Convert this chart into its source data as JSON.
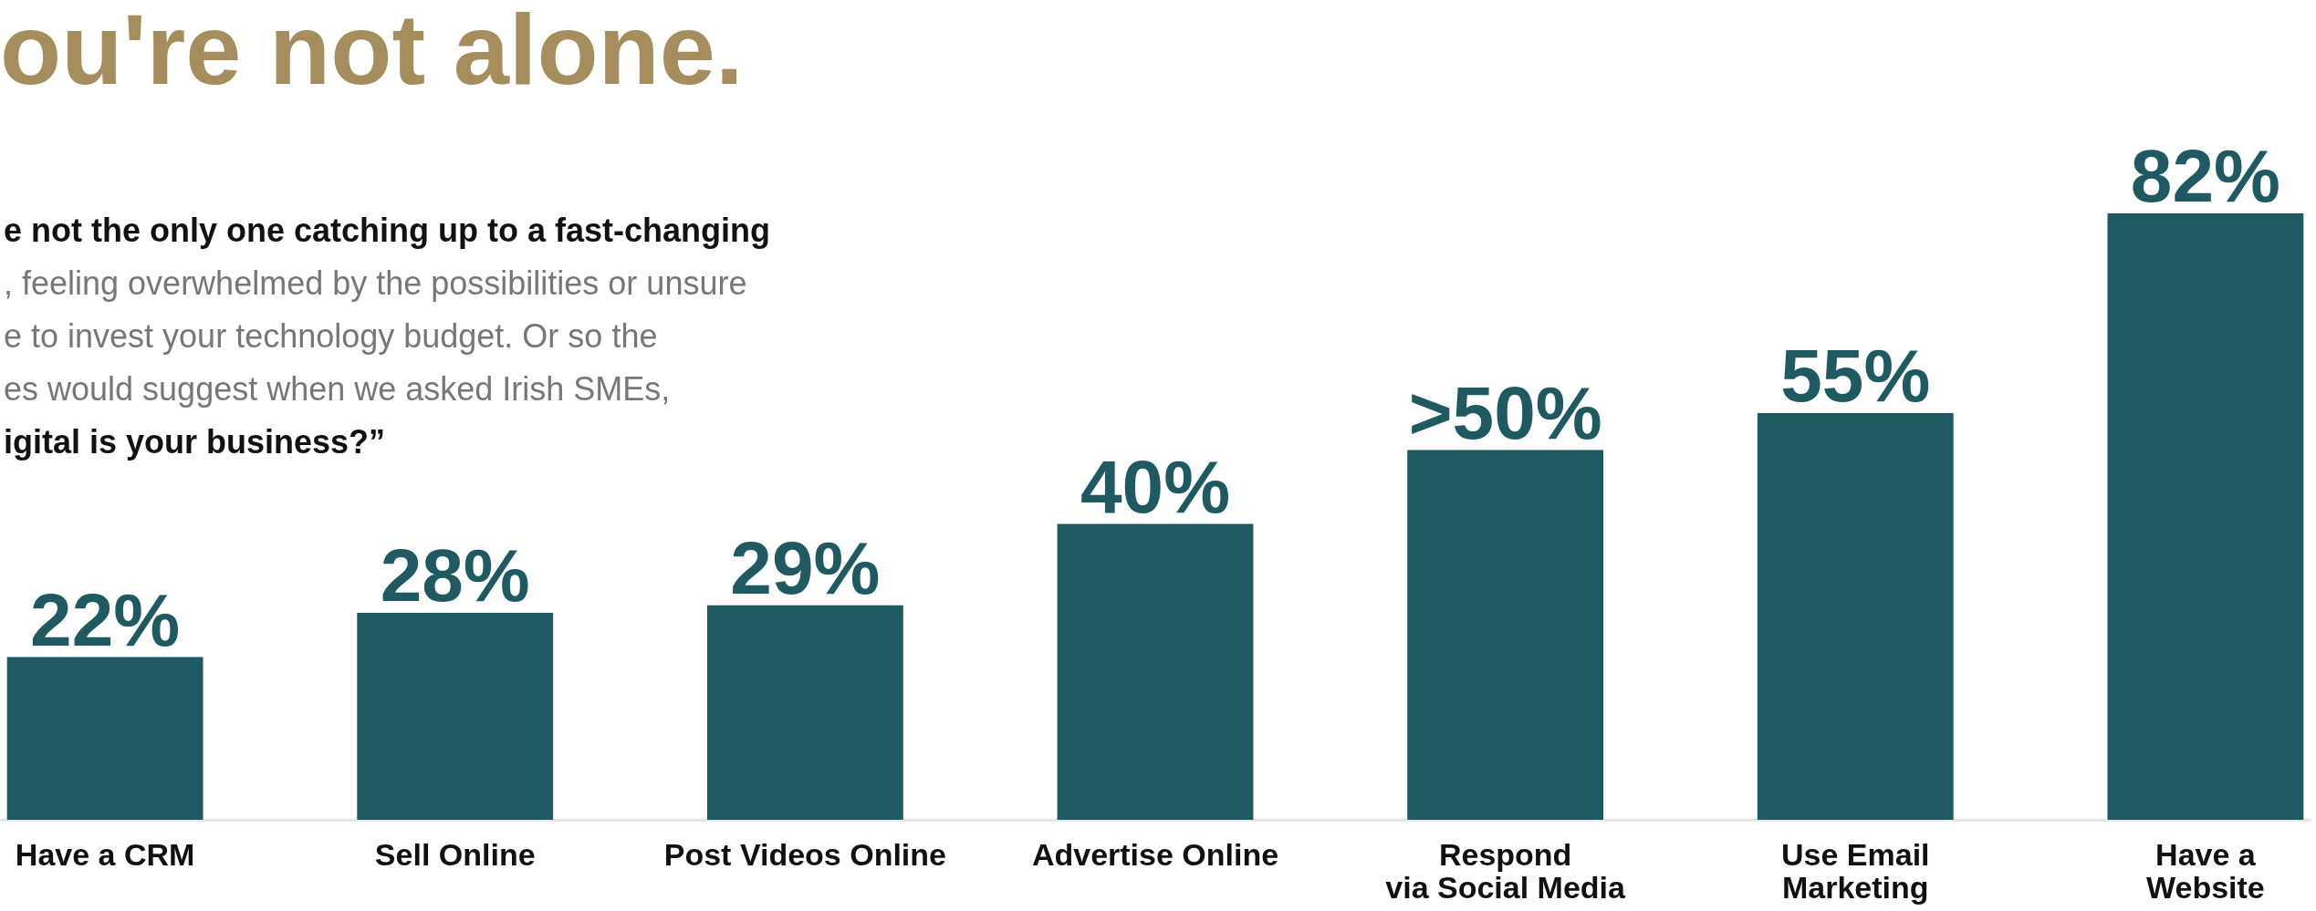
{
  "chart_data": {
    "type": "bar",
    "title": "ou're not alone.",
    "annotations": [
      "e not the only one catching up to a fast-changing",
      ", feeling overwhelmed by the possibilities or unsure",
      "e to invest your technology budget. Or so the",
      "es would suggest when we asked Irish SMEs,",
      "igital is your business?”"
    ],
    "categories": [
      "Have a CRM",
      "Sell Online",
      "Post Videos Online",
      "Advertise Online",
      "Respond\nvia Social Media",
      "Use Email\nMarketing",
      "Have a\nWebsite"
    ],
    "values": [
      22,
      28,
      29,
      40,
      50,
      55,
      82
    ],
    "value_labels": [
      "22%",
      "28%",
      "29%",
      "40%",
      ">50%",
      "55%",
      "82%"
    ],
    "color": "#1f5a63",
    "grid": false
  }
}
